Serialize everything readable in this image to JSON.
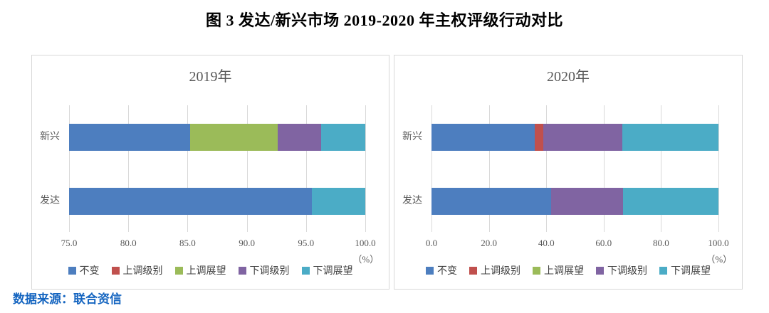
{
  "figure_title": "图 3 发达/新兴市场 2019-2020 年主权评级行动对比",
  "source_note": "数据来源：联合资信",
  "colors": {
    "unchanged": "#4d7ebf",
    "upgrade_level": "#c0504d",
    "upgrade_outlook": "#9bbb59",
    "downgrade_level": "#8064a2",
    "downgrade_outlook": "#4bacc6",
    "grid": "#d9d9d9",
    "panel_border": "#d8d8d8",
    "axis_text": "#595959",
    "source_text": "#1565c0"
  },
  "legend": [
    "不变",
    "上调级别",
    "上调展望",
    "下调级别",
    "下调展望"
  ],
  "chart_data": [
    {
      "type": "bar",
      "orientation": "horizontal",
      "stacked": true,
      "title": "2019年",
      "categories": [
        "新兴",
        "发达"
      ],
      "series": [
        {
          "name": "不变",
          "color": "#4d7ebf",
          "values": [
            85.2,
            95.5
          ]
        },
        {
          "name": "上调级别",
          "color": "#c0504d",
          "values": [
            0,
            0
          ]
        },
        {
          "name": "上调展望",
          "color": "#9bbb59",
          "values": [
            7.4,
            0
          ]
        },
        {
          "name": "下调级别",
          "color": "#8064a2",
          "values": [
            3.7,
            0
          ]
        },
        {
          "name": "下调展望",
          "color": "#4bacc6",
          "values": [
            3.7,
            4.5
          ]
        }
      ],
      "xlim": [
        75,
        100
      ],
      "xticks": [
        "75.0",
        "80.0",
        "85.0",
        "90.0",
        "95.0",
        "100.0"
      ],
      "x_unit": "（%）",
      "grid": true,
      "legend_position": "bottom"
    },
    {
      "type": "bar",
      "orientation": "horizontal",
      "stacked": true,
      "title": "2020年",
      "categories": [
        "新兴",
        "发达"
      ],
      "series": [
        {
          "name": "不变",
          "color": "#4d7ebf",
          "values": [
            35.9,
            41.7
          ]
        },
        {
          "name": "上调级别",
          "color": "#c0504d",
          "values": [
            3.0,
            0
          ]
        },
        {
          "name": "上调展望",
          "color": "#9bbb59",
          "values": [
            0,
            0
          ]
        },
        {
          "name": "下调级别",
          "color": "#8064a2",
          "values": [
            27.6,
            25.0
          ]
        },
        {
          "name": "下调展望",
          "color": "#4bacc6",
          "values": [
            33.5,
            33.3
          ]
        }
      ],
      "xlim": [
        0,
        100
      ],
      "xticks": [
        "0.0",
        "20.0",
        "40.0",
        "60.0",
        "80.0",
        "100.0"
      ],
      "x_unit": "（%）",
      "grid": true,
      "legend_position": "bottom"
    }
  ]
}
